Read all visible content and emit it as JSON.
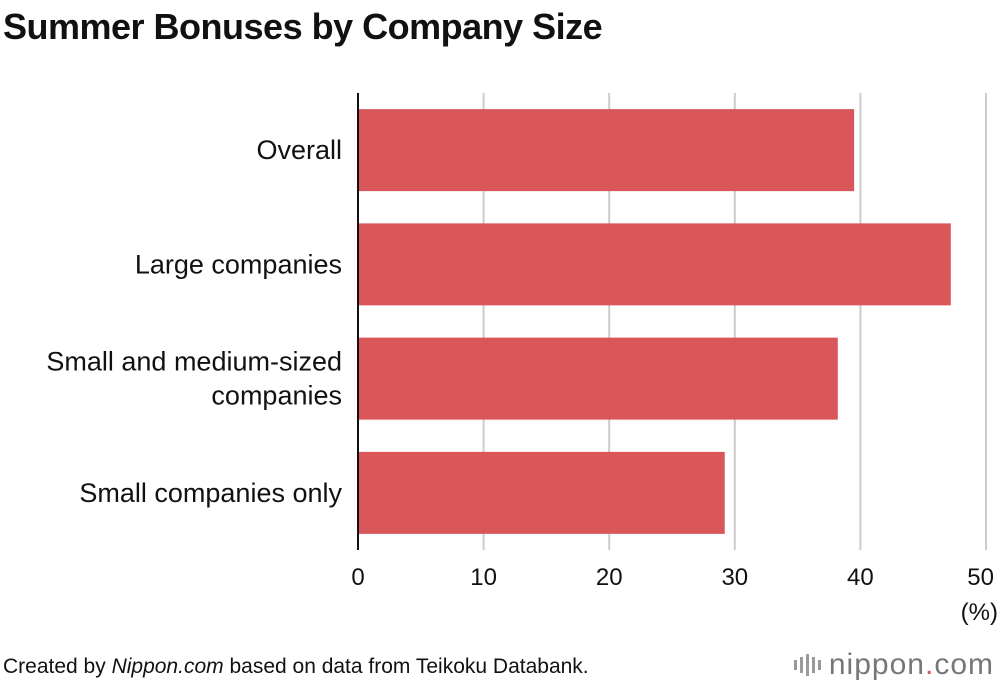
{
  "title": "Summer Bonuses by Company Size",
  "footer": {
    "prefix": "Created by ",
    "source_site": "Nippon.com",
    "suffix": " based on data from Teikoku Databank."
  },
  "brand": {
    "name_left": "nippon",
    "dot": ".",
    "name_right": "com",
    "icon": "sound-bars-icon",
    "accent_color": "#d6565a"
  },
  "chart_data": {
    "type": "bar",
    "orientation": "horizontal",
    "categories": [
      "Overall",
      "Large companies",
      "Small and medium-sized companies",
      "Small companies only"
    ],
    "category_lines": [
      [
        "Overall"
      ],
      [
        "Large companies"
      ],
      [
        "Small and medium-sized",
        "companies"
      ],
      [
        "Small companies only"
      ]
    ],
    "values": [
      39.5,
      47.2,
      38.2,
      29.2
    ],
    "xlim": [
      0,
      50
    ],
    "xticks": [
      0,
      10,
      20,
      30,
      40,
      50
    ],
    "unit_label": "(%)",
    "bar_color": "#d9575a",
    "grid": true,
    "grid_color": "#cccccc",
    "legend": "none"
  }
}
